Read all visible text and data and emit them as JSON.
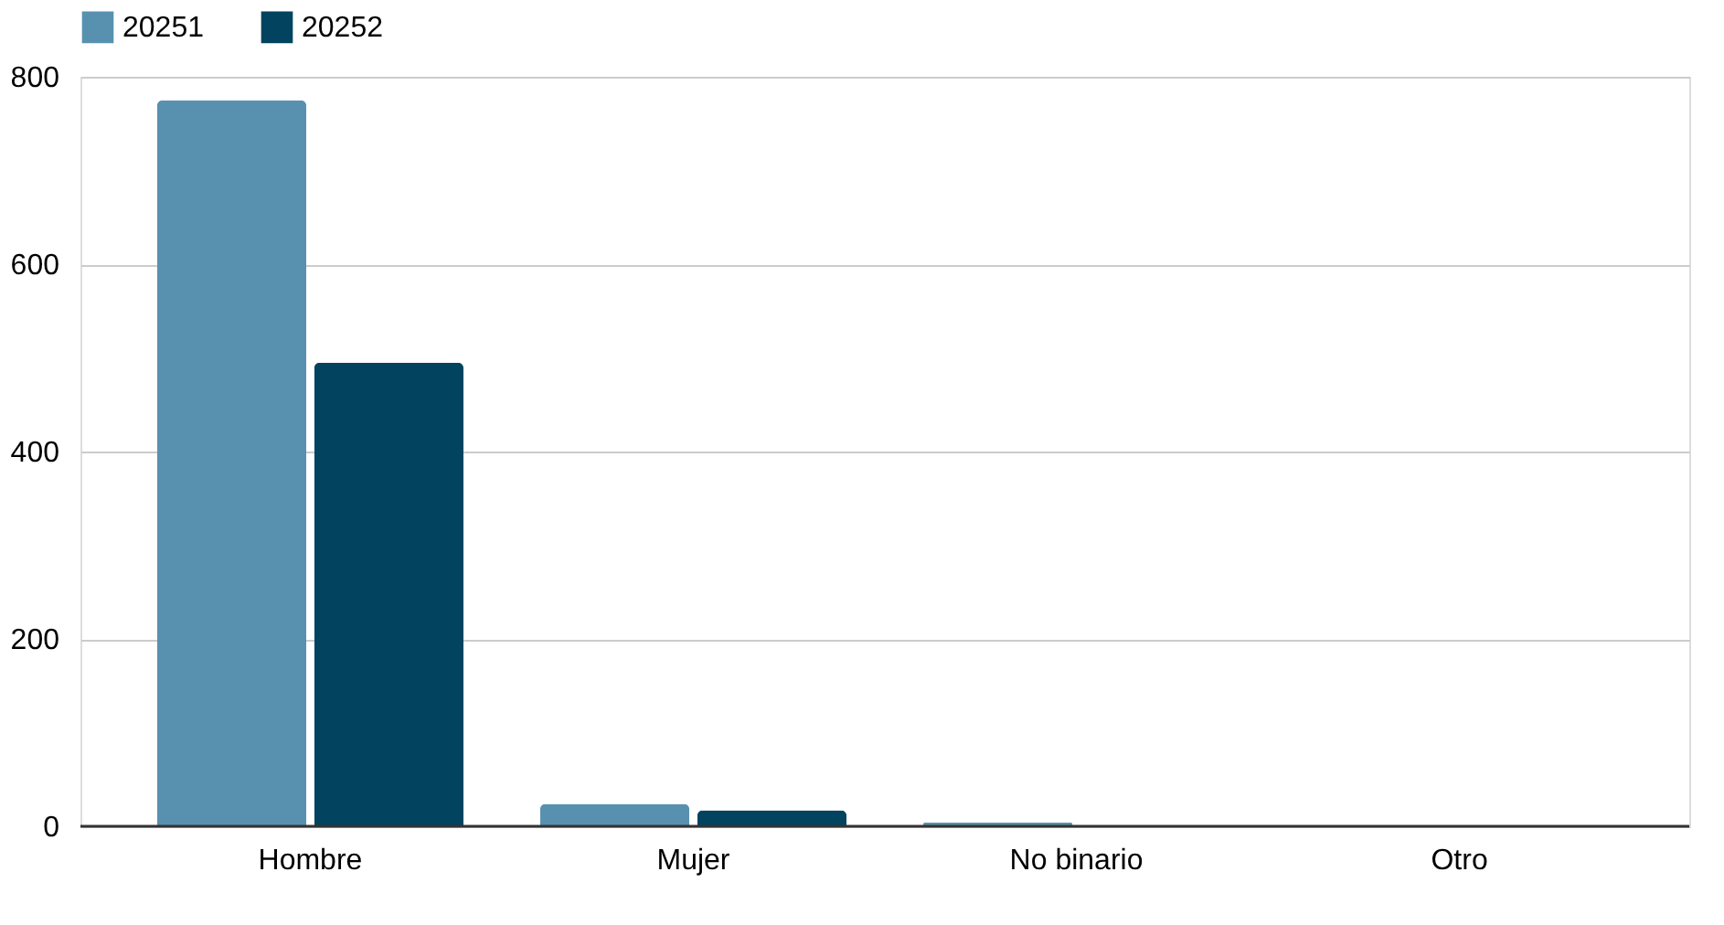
{
  "chart_data": {
    "type": "bar",
    "categories": [
      "Hombre",
      "Mujer",
      "No binario",
      "Otro"
    ],
    "series": [
      {
        "name": "20251",
        "color": "#5891b0",
        "values": [
          775,
          24,
          4,
          0
        ]
      },
      {
        "name": "20252",
        "color": "#02435f",
        "values": [
          495,
          17,
          0,
          0
        ]
      }
    ],
    "ylim": [
      0,
      800
    ],
    "yticks": [
      0,
      200,
      400,
      600,
      800
    ],
    "grid": "y",
    "legend": "top"
  }
}
